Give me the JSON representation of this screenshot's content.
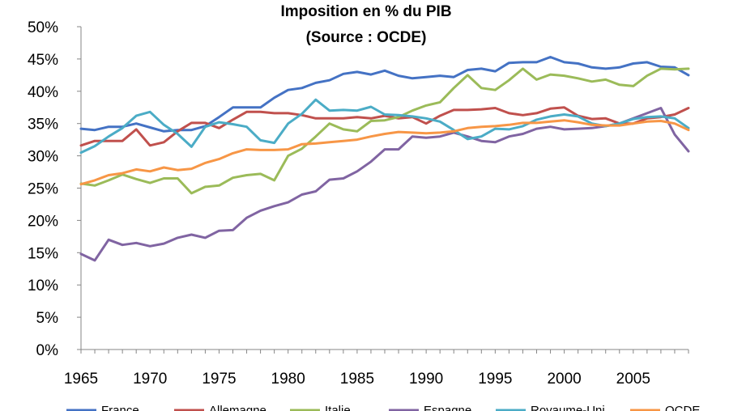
{
  "chart_data": {
    "type": "line",
    "title": "Imposition en % du PIB",
    "subtitle": "(Source : OCDE)",
    "xlabel": "",
    "ylabel": "",
    "xlim": [
      1965,
      2009
    ],
    "ylim": [
      0,
      50
    ],
    "x_ticks": [
      1965,
      1970,
      1975,
      1980,
      1985,
      1990,
      1995,
      2000,
      2005
    ],
    "y_ticks": [
      0,
      5,
      10,
      15,
      20,
      25,
      30,
      35,
      40,
      45,
      50
    ],
    "y_tick_labels": [
      "0%",
      "5%",
      "10%",
      "15%",
      "20%",
      "25%",
      "30%",
      "35%",
      "40%",
      "45%",
      "50%"
    ],
    "grid": false,
    "legend_position": "bottom",
    "x": [
      1965,
      1966,
      1967,
      1968,
      1969,
      1970,
      1971,
      1972,
      1973,
      1974,
      1975,
      1976,
      1977,
      1978,
      1979,
      1980,
      1981,
      1982,
      1983,
      1984,
      1985,
      1986,
      1987,
      1988,
      1989,
      1990,
      1991,
      1992,
      1993,
      1994,
      1995,
      1996,
      1997,
      1998,
      1999,
      2000,
      2001,
      2002,
      2003,
      2004,
      2005,
      2006,
      2007,
      2008,
      2009
    ],
    "series": [
      {
        "name": "France",
        "color": "#4472C4",
        "values": [
          34.2,
          34.0,
          34.5,
          34.5,
          35.0,
          34.4,
          33.8,
          34.0,
          34.0,
          34.6,
          36.0,
          37.5,
          37.5,
          37.5,
          39.0,
          40.2,
          40.5,
          41.3,
          41.7,
          42.7,
          43.0,
          42.6,
          43.2,
          42.4,
          42.0,
          42.2,
          42.4,
          42.2,
          43.3,
          43.5,
          43.1,
          44.4,
          44.5,
          44.5,
          45.3,
          44.5,
          44.3,
          43.7,
          43.5,
          43.7,
          44.3,
          44.5,
          43.8,
          43.7,
          42.5
        ]
      },
      {
        "name": "Allemagne",
        "color": "#C0504D",
        "values": [
          31.6,
          32.3,
          32.3,
          32.3,
          34.1,
          31.6,
          32.1,
          33.8,
          35.1,
          35.1,
          34.3,
          35.6,
          36.8,
          36.8,
          36.6,
          36.6,
          36.3,
          35.8,
          35.8,
          35.8,
          36.0,
          35.8,
          36.2,
          35.8,
          36.0,
          35.0,
          36.2,
          37.1,
          37.1,
          37.2,
          37.4,
          36.6,
          36.3,
          36.6,
          37.3,
          37.5,
          36.2,
          35.7,
          35.8,
          35.0,
          35.0,
          35.8,
          36.0,
          36.4,
          37.4
        ]
      },
      {
        "name": "Italie",
        "color": "#9BBB59",
        "values": [
          25.7,
          25.4,
          26.2,
          27.1,
          26.4,
          25.8,
          26.5,
          26.5,
          24.2,
          25.2,
          25.4,
          26.6,
          27.0,
          27.2,
          26.2,
          30.0,
          31.1,
          33.0,
          35.0,
          34.1,
          33.8,
          35.4,
          35.5,
          36.0,
          37.0,
          37.8,
          38.3,
          40.5,
          42.5,
          40.5,
          40.2,
          41.7,
          43.5,
          41.8,
          42.6,
          42.4,
          42.0,
          41.5,
          41.8,
          41.0,
          40.8,
          42.4,
          43.5,
          43.4,
          43.5
        ]
      },
      {
        "name": "Espagne",
        "color": "#8064A2",
        "values": [
          14.8,
          13.8,
          17.0,
          16.2,
          16.5,
          16.0,
          16.4,
          17.3,
          17.8,
          17.3,
          18.4,
          18.5,
          20.4,
          21.5,
          22.2,
          22.8,
          24.0,
          24.5,
          26.3,
          26.5,
          27.6,
          29.1,
          31.0,
          31.0,
          33.0,
          32.8,
          33.0,
          33.6,
          33.0,
          32.3,
          32.1,
          33.0,
          33.4,
          34.2,
          34.5,
          34.1,
          34.2,
          34.3,
          34.6,
          35.0,
          35.8,
          36.6,
          37.4,
          33.3,
          30.7
        ]
      },
      {
        "name": "Royaume-Uni",
        "color": "#4BACC6",
        "values": [
          30.5,
          31.5,
          33.0,
          34.3,
          36.2,
          36.8,
          34.8,
          33.4,
          31.4,
          34.5,
          35.2,
          34.9,
          34.5,
          32.4,
          32.0,
          35.0,
          36.5,
          38.7,
          37.0,
          37.1,
          37.0,
          37.6,
          36.4,
          36.3,
          36.1,
          35.8,
          35.3,
          34.0,
          32.6,
          33.0,
          34.2,
          34.1,
          34.6,
          35.6,
          36.1,
          36.4,
          36.1,
          35.0,
          34.6,
          35.0,
          35.7,
          36.0,
          36.1,
          35.8,
          34.3
        ]
      },
      {
        "name": "OCDE",
        "color": "#F79646",
        "values": [
          25.6,
          26.2,
          27.0,
          27.3,
          27.9,
          27.6,
          28.2,
          27.8,
          28.0,
          28.9,
          29.5,
          30.4,
          31.0,
          30.9,
          30.9,
          31.0,
          31.8,
          31.9,
          32.1,
          32.3,
          32.5,
          33.0,
          33.4,
          33.7,
          33.6,
          33.5,
          33.6,
          33.8,
          34.3,
          34.5,
          34.6,
          34.8,
          35.1,
          35.1,
          35.3,
          35.5,
          35.2,
          34.8,
          34.7,
          34.7,
          35.0,
          35.3,
          35.4,
          35.0,
          34.0
        ]
      }
    ]
  }
}
